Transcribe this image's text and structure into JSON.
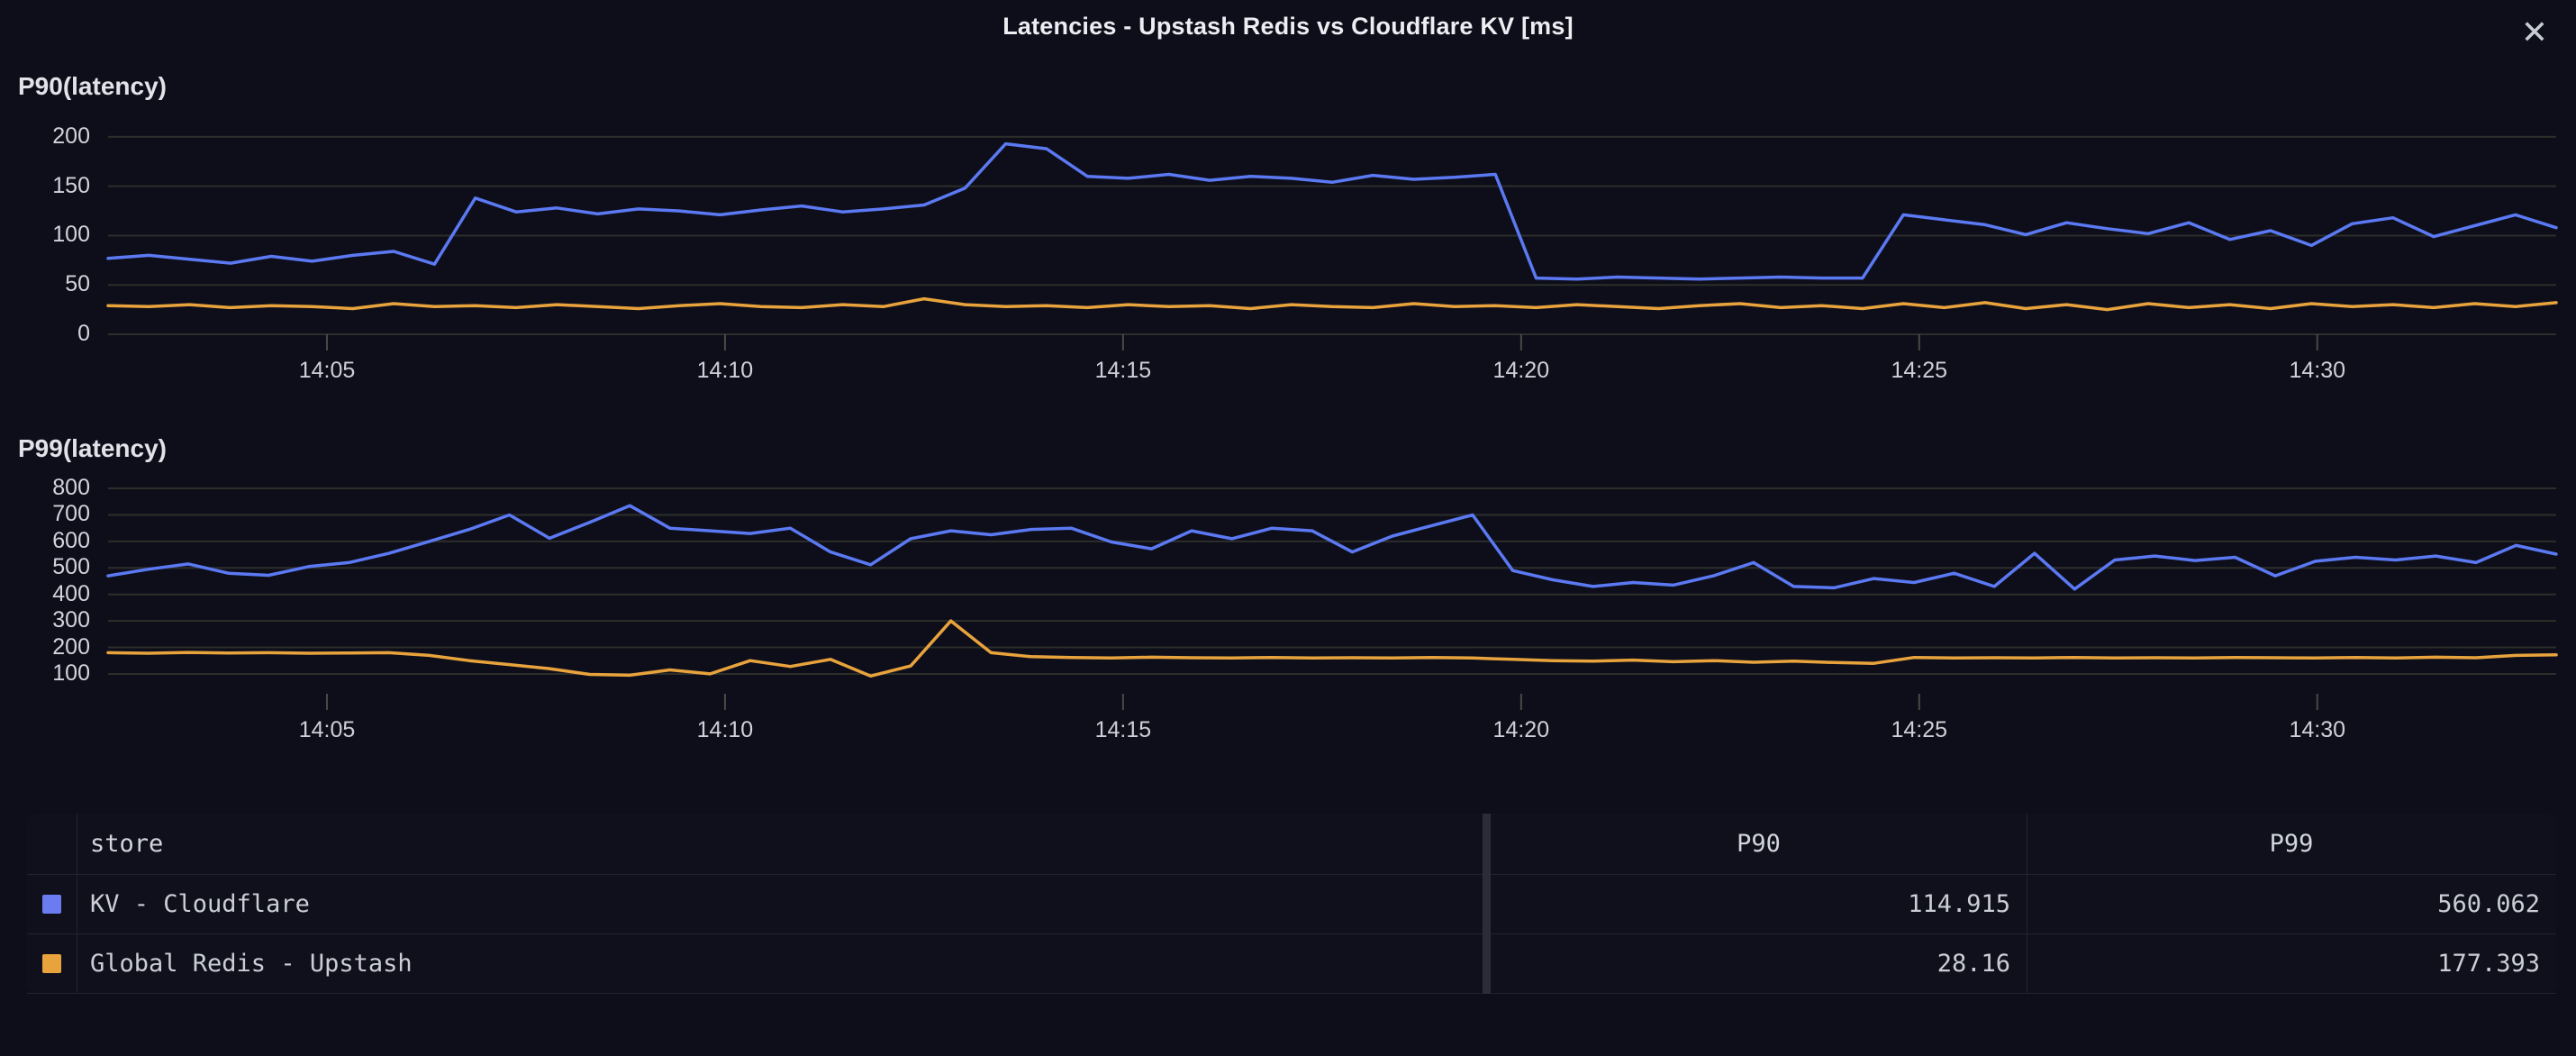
{
  "header": {
    "title": "Latencies - Upstash Redis vs Cloudflare KV [ms]",
    "close_icon": "✕"
  },
  "colors": {
    "background": "#0e0e1b",
    "grid": "#2b2e29",
    "tick": "#474a42",
    "axis_text": "#d2d3da",
    "blue_series": "#5b79f2",
    "orange_series": "#e8a33c"
  },
  "chart_data": [
    {
      "type": "line",
      "title": "P90(latency)",
      "ylabel": "",
      "xlabel": "",
      "ylim": [
        0,
        220
      ],
      "y_ticks": [
        0,
        50,
        100,
        150,
        200
      ],
      "x_ticks": [
        {
          "label": "14:05",
          "f": 0.0894
        },
        {
          "label": "14:10",
          "f": 0.252
        },
        {
          "label": "14:15",
          "f": 0.4146
        },
        {
          "label": "14:20",
          "f": 0.5772
        },
        {
          "label": "14:25",
          "f": 0.7398
        },
        {
          "label": "14:30",
          "f": 0.9024
        }
      ],
      "x_range": [
        "14:02",
        "14:33"
      ],
      "grid": true,
      "series": [
        {
          "name": "KV - Cloudflare",
          "color": "#5b79f2",
          "values": [
            77,
            80,
            76,
            72,
            79,
            74,
            80,
            84,
            71,
            138,
            124,
            128,
            122,
            127,
            125,
            121,
            126,
            130,
            124,
            127,
            131,
            148,
            193,
            188,
            160,
            158,
            162,
            156,
            160,
            158,
            154,
            161,
            157,
            159,
            162,
            57,
            56,
            58,
            57,
            56,
            57,
            58,
            57,
            57,
            121,
            116,
            111,
            101,
            113,
            107,
            102,
            113,
            96,
            105,
            90,
            112,
            118,
            99,
            110,
            121,
            108
          ]
        },
        {
          "name": "Global Redis - Upstash",
          "color": "#e8a33c",
          "values": [
            29,
            28,
            30,
            27,
            29,
            28,
            26,
            31,
            28,
            29,
            27,
            30,
            28,
            26,
            29,
            31,
            28,
            27,
            30,
            28,
            36,
            30,
            28,
            29,
            27,
            30,
            28,
            29,
            26,
            30,
            28,
            27,
            31,
            28,
            29,
            27,
            30,
            28,
            26,
            29,
            31,
            27,
            29,
            26,
            31,
            27,
            32,
            26,
            30,
            25,
            31,
            27,
            30,
            26,
            31,
            28,
            30,
            27,
            31,
            28,
            32
          ]
        }
      ]
    },
    {
      "type": "line",
      "title": "P99(latency)",
      "ylabel": "",
      "xlabel": "",
      "ylim": [
        25,
        875
      ],
      "y_ticks": [
        100,
        200,
        300,
        400,
        500,
        600,
        700,
        800
      ],
      "x_ticks": [
        {
          "label": "14:05",
          "f": 0.0894
        },
        {
          "label": "14:10",
          "f": 0.252
        },
        {
          "label": "14:15",
          "f": 0.4146
        },
        {
          "label": "14:20",
          "f": 0.5772
        },
        {
          "label": "14:25",
          "f": 0.7398
        },
        {
          "label": "14:30",
          "f": 0.9024
        }
      ],
      "x_range": [
        "14:02",
        "14:33"
      ],
      "grid": true,
      "series": [
        {
          "name": "KV - Cloudflare",
          "color": "#5b79f2",
          "values": [
            470,
            495,
            515,
            480,
            472,
            505,
            520,
            555,
            600,
            645,
            700,
            612,
            672,
            735,
            650,
            640,
            630,
            650,
            560,
            512,
            610,
            640,
            625,
            645,
            650,
            598,
            572,
            640,
            610,
            650,
            640,
            560,
            620,
            660,
            700,
            490,
            455,
            430,
            445,
            435,
            470,
            520,
            430,
            425,
            460,
            445,
            480,
            430,
            555,
            420,
            530,
            545,
            528,
            540,
            470,
            525,
            540,
            530,
            545,
            520,
            585,
            552
          ]
        },
        {
          "name": "Global Redis - Upstash",
          "color": "#e8a33c",
          "values": [
            180,
            178,
            181,
            179,
            180,
            178,
            179,
            180,
            170,
            150,
            135,
            120,
            98,
            95,
            115,
            100,
            150,
            128,
            155,
            92,
            130,
            300,
            180,
            165,
            162,
            160,
            163,
            161,
            160,
            162,
            160,
            161,
            160,
            162,
            160,
            155,
            150,
            148,
            152,
            146,
            150,
            144,
            148,
            143,
            140,
            162,
            160,
            161,
            160,
            162,
            160,
            161,
            160,
            162,
            161,
            160,
            162,
            160,
            163,
            161,
            170,
            172
          ]
        }
      ]
    }
  ],
  "table": {
    "columns": [
      "store",
      "P90",
      "P99"
    ],
    "rows": [
      {
        "store": "KV - Cloudflare",
        "swatch": "#6b7cf0",
        "p90": "114.915",
        "p99": "560.062"
      },
      {
        "store": "Global Redis - Upstash",
        "swatch": "#e8a33c",
        "p90": "28.16",
        "p99": "177.393"
      }
    ]
  }
}
